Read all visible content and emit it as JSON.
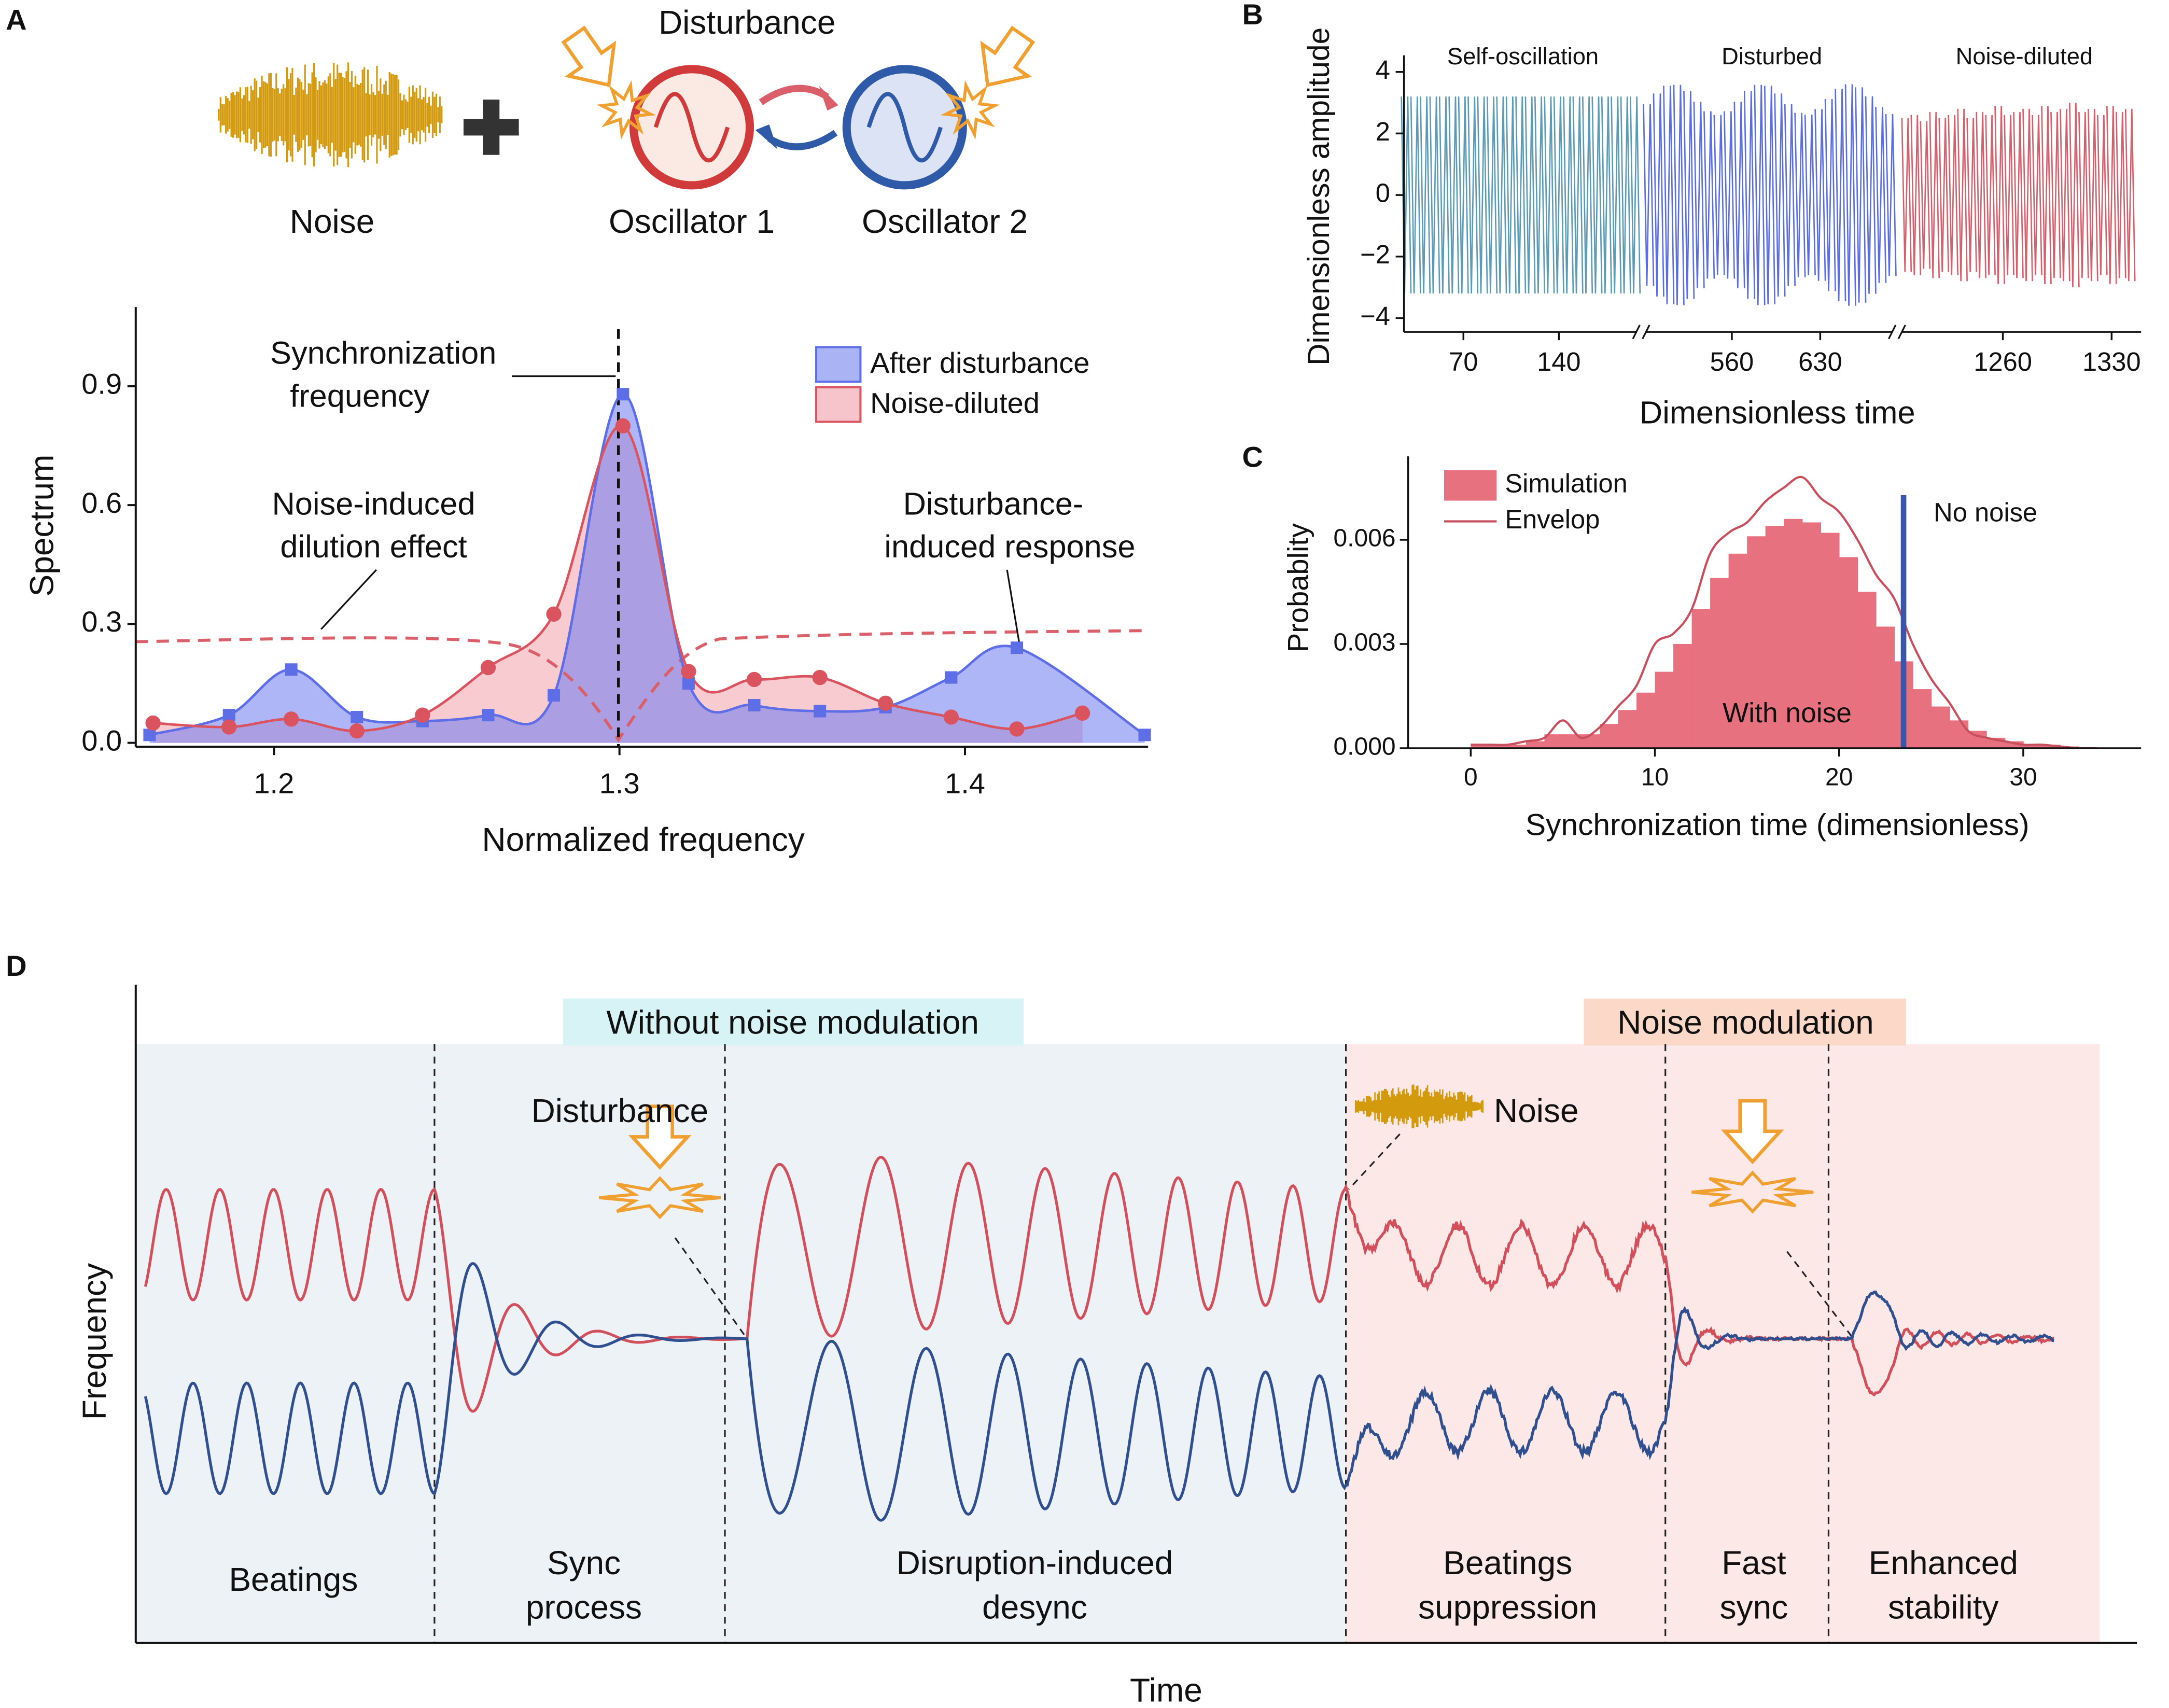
{
  "panels": [
    "A",
    "B",
    "C",
    "D"
  ],
  "schematic": {
    "disturbance": "Disturbance",
    "noise": "Noise",
    "oscillator_1": "Oscillator 1",
    "oscillator_2": "Oscillator 2"
  },
  "chart_data": [
    {
      "type": "area",
      "xlabel": "Normalized frequency",
      "ylabel": "Spectrum",
      "xlim": [
        1.16,
        1.453
      ],
      "ylim": [
        -0.01,
        1.1
      ],
      "xticks": [
        1.2,
        1.3,
        1.4
      ],
      "yticks": [
        {
          "value": 0,
          "label": "0.0"
        },
        0.3,
        0.6,
        0.9
      ],
      "legend": "upper right",
      "annotations": [
        [
          "Synchronization",
          "frequency"
        ],
        [
          "Noise-induced",
          "dilution effect"
        ],
        [
          "Disturbance-",
          "induced response"
        ]
      ],
      "series": [
        {
          "name": "After disturbance",
          "color": "#5d6ee6",
          "marker": "square",
          "x": [
            1.164,
            1.187,
            1.205,
            1.224,
            1.243,
            1.262,
            1.281,
            1.301,
            1.32,
            1.339,
            1.358,
            1.377,
            1.396,
            1.415,
            1.452
          ],
          "values": [
            0.02,
            0.07,
            0.185,
            0.065,
            0.055,
            0.07,
            0.12,
            0.88,
            0.15,
            0.095,
            0.08,
            0.09,
            0.165,
            0.24,
            0.02
          ]
        },
        {
          "name": "Noise-diluted",
          "color": "#d9545f",
          "marker": "circle",
          "x": [
            1.165,
            1.187,
            1.205,
            1.224,
            1.243,
            1.262,
            1.281,
            1.301,
            1.32,
            1.339,
            1.358,
            1.377,
            1.396,
            1.415,
            1.434
          ],
          "values": [
            0.05,
            0.04,
            0.06,
            0.03,
            0.07,
            0.19,
            0.325,
            0.8,
            0.18,
            0.16,
            0.165,
            0.1,
            0.065,
            0.035,
            0.075
          ]
        }
      ]
    },
    {
      "type": "segments",
      "xlabel": "Dimensionless time",
      "ylabel": "Dimensionless amplitude",
      "ylim": [
        -4.45,
        4.54
      ],
      "yticks": [
        4,
        2,
        0,
        {
          "value": -2,
          "label": "−2"
        },
        {
          "value": -4,
          "label": "−4"
        }
      ],
      "series": [
        {
          "name": "Self-oscillation",
          "color": "#5b9bb5",
          "xlim": [
            26.4,
            196.8
          ],
          "xticks": [
            70,
            140
          ],
          "x": [
            28,
            35,
            42,
            49,
            56,
            63,
            70,
            77,
            84,
            91,
            98,
            105,
            112,
            119,
            126,
            133,
            140,
            147,
            154,
            161,
            168,
            175,
            182,
            189,
            196
          ],
          "values": [
            3.2,
            3.2,
            3.2,
            3.2,
            3.2,
            3.2,
            3.2,
            3.2,
            3.2,
            3.2,
            3.2,
            3.2,
            3.2,
            3.2,
            3.2,
            3.2,
            3.2,
            3.2,
            3.2,
            3.2,
            3.2,
            3.2,
            3.2,
            3.2,
            3.2
          ]
        },
        {
          "name": "Disturbed",
          "color": "#5b6ee0",
          "xlim": [
            492,
            687
          ],
          "xticks": [
            560,
            630
          ],
          "x": [
            494,
            502,
            510,
            518,
            526,
            534,
            542,
            550,
            558,
            566,
            574,
            582,
            590,
            598,
            606,
            614,
            622,
            630,
            638,
            646,
            654,
            662,
            670,
            678,
            686
          ],
          "values": [
            2.95,
            3.3,
            3.55,
            3.58,
            3.38,
            3.03,
            2.72,
            2.6,
            2.72,
            3.03,
            3.38,
            3.58,
            3.55,
            3.3,
            2.95,
            2.67,
            2.61,
            2.79,
            3.12,
            3.45,
            3.6,
            3.5,
            3.21,
            2.86,
            2.63
          ]
        },
        {
          "name": "Noise-diluted",
          "color": "#d2616e",
          "xlim": [
            1195,
            1349
          ],
          "xticks": [
            1260,
            1330
          ],
          "x": [
            1198,
            1204,
            1210,
            1216,
            1222,
            1228,
            1234,
            1240,
            1246,
            1252,
            1258,
            1264,
            1270,
            1276,
            1282,
            1288,
            1294,
            1300,
            1306,
            1312,
            1318,
            1324,
            1330,
            1336,
            1342
          ],
          "values": [
            2.5,
            2.6,
            2.4,
            2.7,
            2.5,
            2.6,
            2.8,
            2.5,
            2.7,
            2.6,
            2.9,
            2.6,
            2.7,
            2.8,
            2.6,
            2.9,
            2.7,
            2.8,
            3.0,
            2.7,
            2.8,
            2.6,
            2.9,
            2.7,
            2.8
          ]
        }
      ]
    },
    {
      "type": "histogram",
      "xlabel": "Synchronization time (dimensionless)",
      "ylabel": "Probablity",
      "xlim": [
        -3.4,
        36.4
      ],
      "ylim": [
        0,
        0.0084
      ],
      "xticks": [
        0,
        10,
        20,
        30
      ],
      "yticks": [
        {
          "value": 0,
          "label": "0.000"
        },
        0.003,
        0.006
      ],
      "annotation": "With noise",
      "reference": {
        "label": "No noise",
        "x": 23.5,
        "color": "#3a56a8"
      },
      "series": [
        {
          "name": "Simulation",
          "color": "#e8717f",
          "bins": [
            0,
            1,
            2,
            3,
            4,
            5,
            6,
            7,
            8,
            9,
            10,
            11,
            12,
            13,
            14,
            15,
            16,
            17,
            18,
            19,
            20,
            21,
            22,
            23,
            24,
            25,
            26,
            27,
            28,
            29,
            30,
            31,
            32,
            33,
            34
          ],
          "values": [
            0.0001,
            0.0001,
            0.0001,
            0.0002,
            0.0004,
            0.0004,
            0.0004,
            0.0007,
            0.0011,
            0.0016,
            0.0022,
            0.003,
            0.004,
            0.0049,
            0.0056,
            0.0061,
            0.0064,
            0.0066,
            0.0065,
            0.0062,
            0.0055,
            0.0045,
            0.0035,
            0.0025,
            0.0017,
            0.0012,
            0.0008,
            0.0005,
            0.0003,
            0.0002,
            0.0001,
            0.0001,
            5e-05,
            3e-05
          ]
        },
        {
          "name": "Envelop",
          "color": "#c8505e",
          "x": [
            0,
            1,
            2,
            3,
            4,
            5,
            6,
            7,
            8,
            9,
            10,
            11,
            12,
            13,
            14,
            15,
            16,
            17,
            18,
            19,
            20,
            21,
            22,
            23,
            24,
            25,
            26,
            27,
            28,
            29,
            30,
            31,
            32,
            33
          ],
          "values": [
            0.0001,
            0.0001,
            0.0001,
            0.0002,
            0.0003,
            0.0008,
            0.0003,
            0.0006,
            0.0012,
            0.0018,
            0.003,
            0.0033,
            0.004,
            0.0056,
            0.0062,
            0.0065,
            0.0071,
            0.0075,
            0.0078,
            0.0072,
            0.0068,
            0.006,
            0.005,
            0.0043,
            0.003,
            0.002,
            0.0013,
            0.0005,
            0.0003,
            0.0002,
            0.0001,
            0.0001,
            5e-05,
            0
          ]
        }
      ]
    }
  ],
  "diagram": {
    "headers": {
      "left": "Without noise modulation",
      "right": "Noise modulation"
    },
    "disturbance": "Disturbance",
    "noise": "Noise",
    "ylabel": "Frequency",
    "xlabel": "Time",
    "phases": [
      [
        "Beatings"
      ],
      [
        "Sync",
        "process"
      ],
      [
        "Disruption-induced",
        "desync"
      ],
      [
        "Beatings",
        "suppression"
      ],
      [
        "Fast",
        "sync"
      ],
      [
        "Enhanced",
        "stability"
      ]
    ]
  }
}
